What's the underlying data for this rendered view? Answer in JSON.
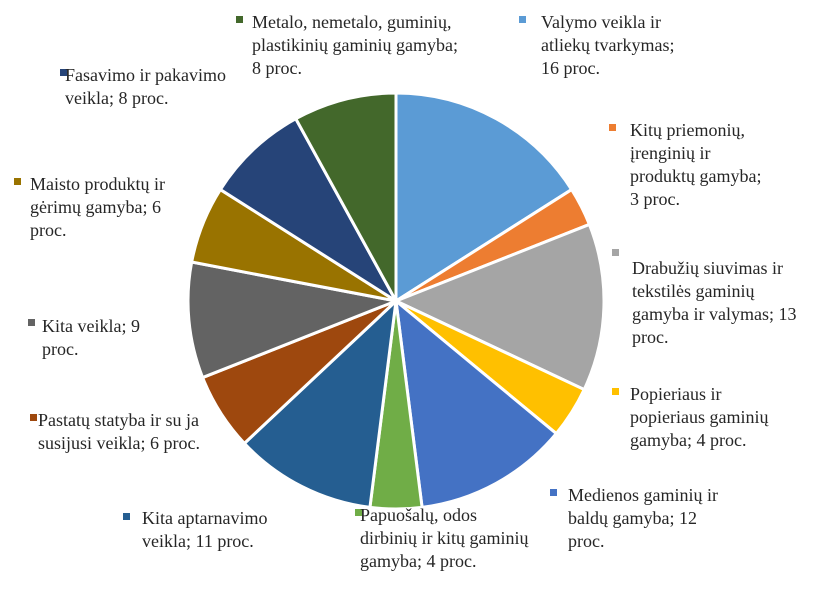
{
  "chart_data": {
    "type": "pie",
    "values": [
      16,
      3,
      13,
      4,
      12,
      4,
      11,
      6,
      9,
      6,
      8,
      8
    ],
    "value_labels": [
      "Valymo veikla ir atliekų tvarkymas; 16 proc.",
      "Kitų priemonių, įrenginių ir produktų gamyba; 3 proc.",
      "Drabužių siuvimas ir tekstilės gaminių gamyba ir valymas; 13 proc.",
      "Popieriaus ir popieriaus gaminių gamyba; 4 proc.",
      "Medienos gaminių ir baldų gamyba; 12 proc.",
      "Papuošalų, odos dirbinių ir kitų gaminių gamyba; 4 proc.",
      "Kita aptarnavimo veikla; 11 proc.",
      "Pastatų statyba ir su ja susijusi veikla; 6 proc.",
      "Kita veikla; 9 proc.",
      "Maisto produktų ir gėrimų gamyba; 6 proc.",
      "Fasavimo ir pakavimo veikla; 8 proc.",
      "Metalo, nemetalo, guminių, plastikinių gaminių gamyba; 8 proc."
    ],
    "colors": [
      "#5b9bd5",
      "#ed7d31",
      "#a5a5a5",
      "#ffc000",
      "#4472c4",
      "#70ad47",
      "#255e91",
      "#9e480e",
      "#636363",
      "#997300",
      "#264478",
      "#43682b"
    ]
  }
}
